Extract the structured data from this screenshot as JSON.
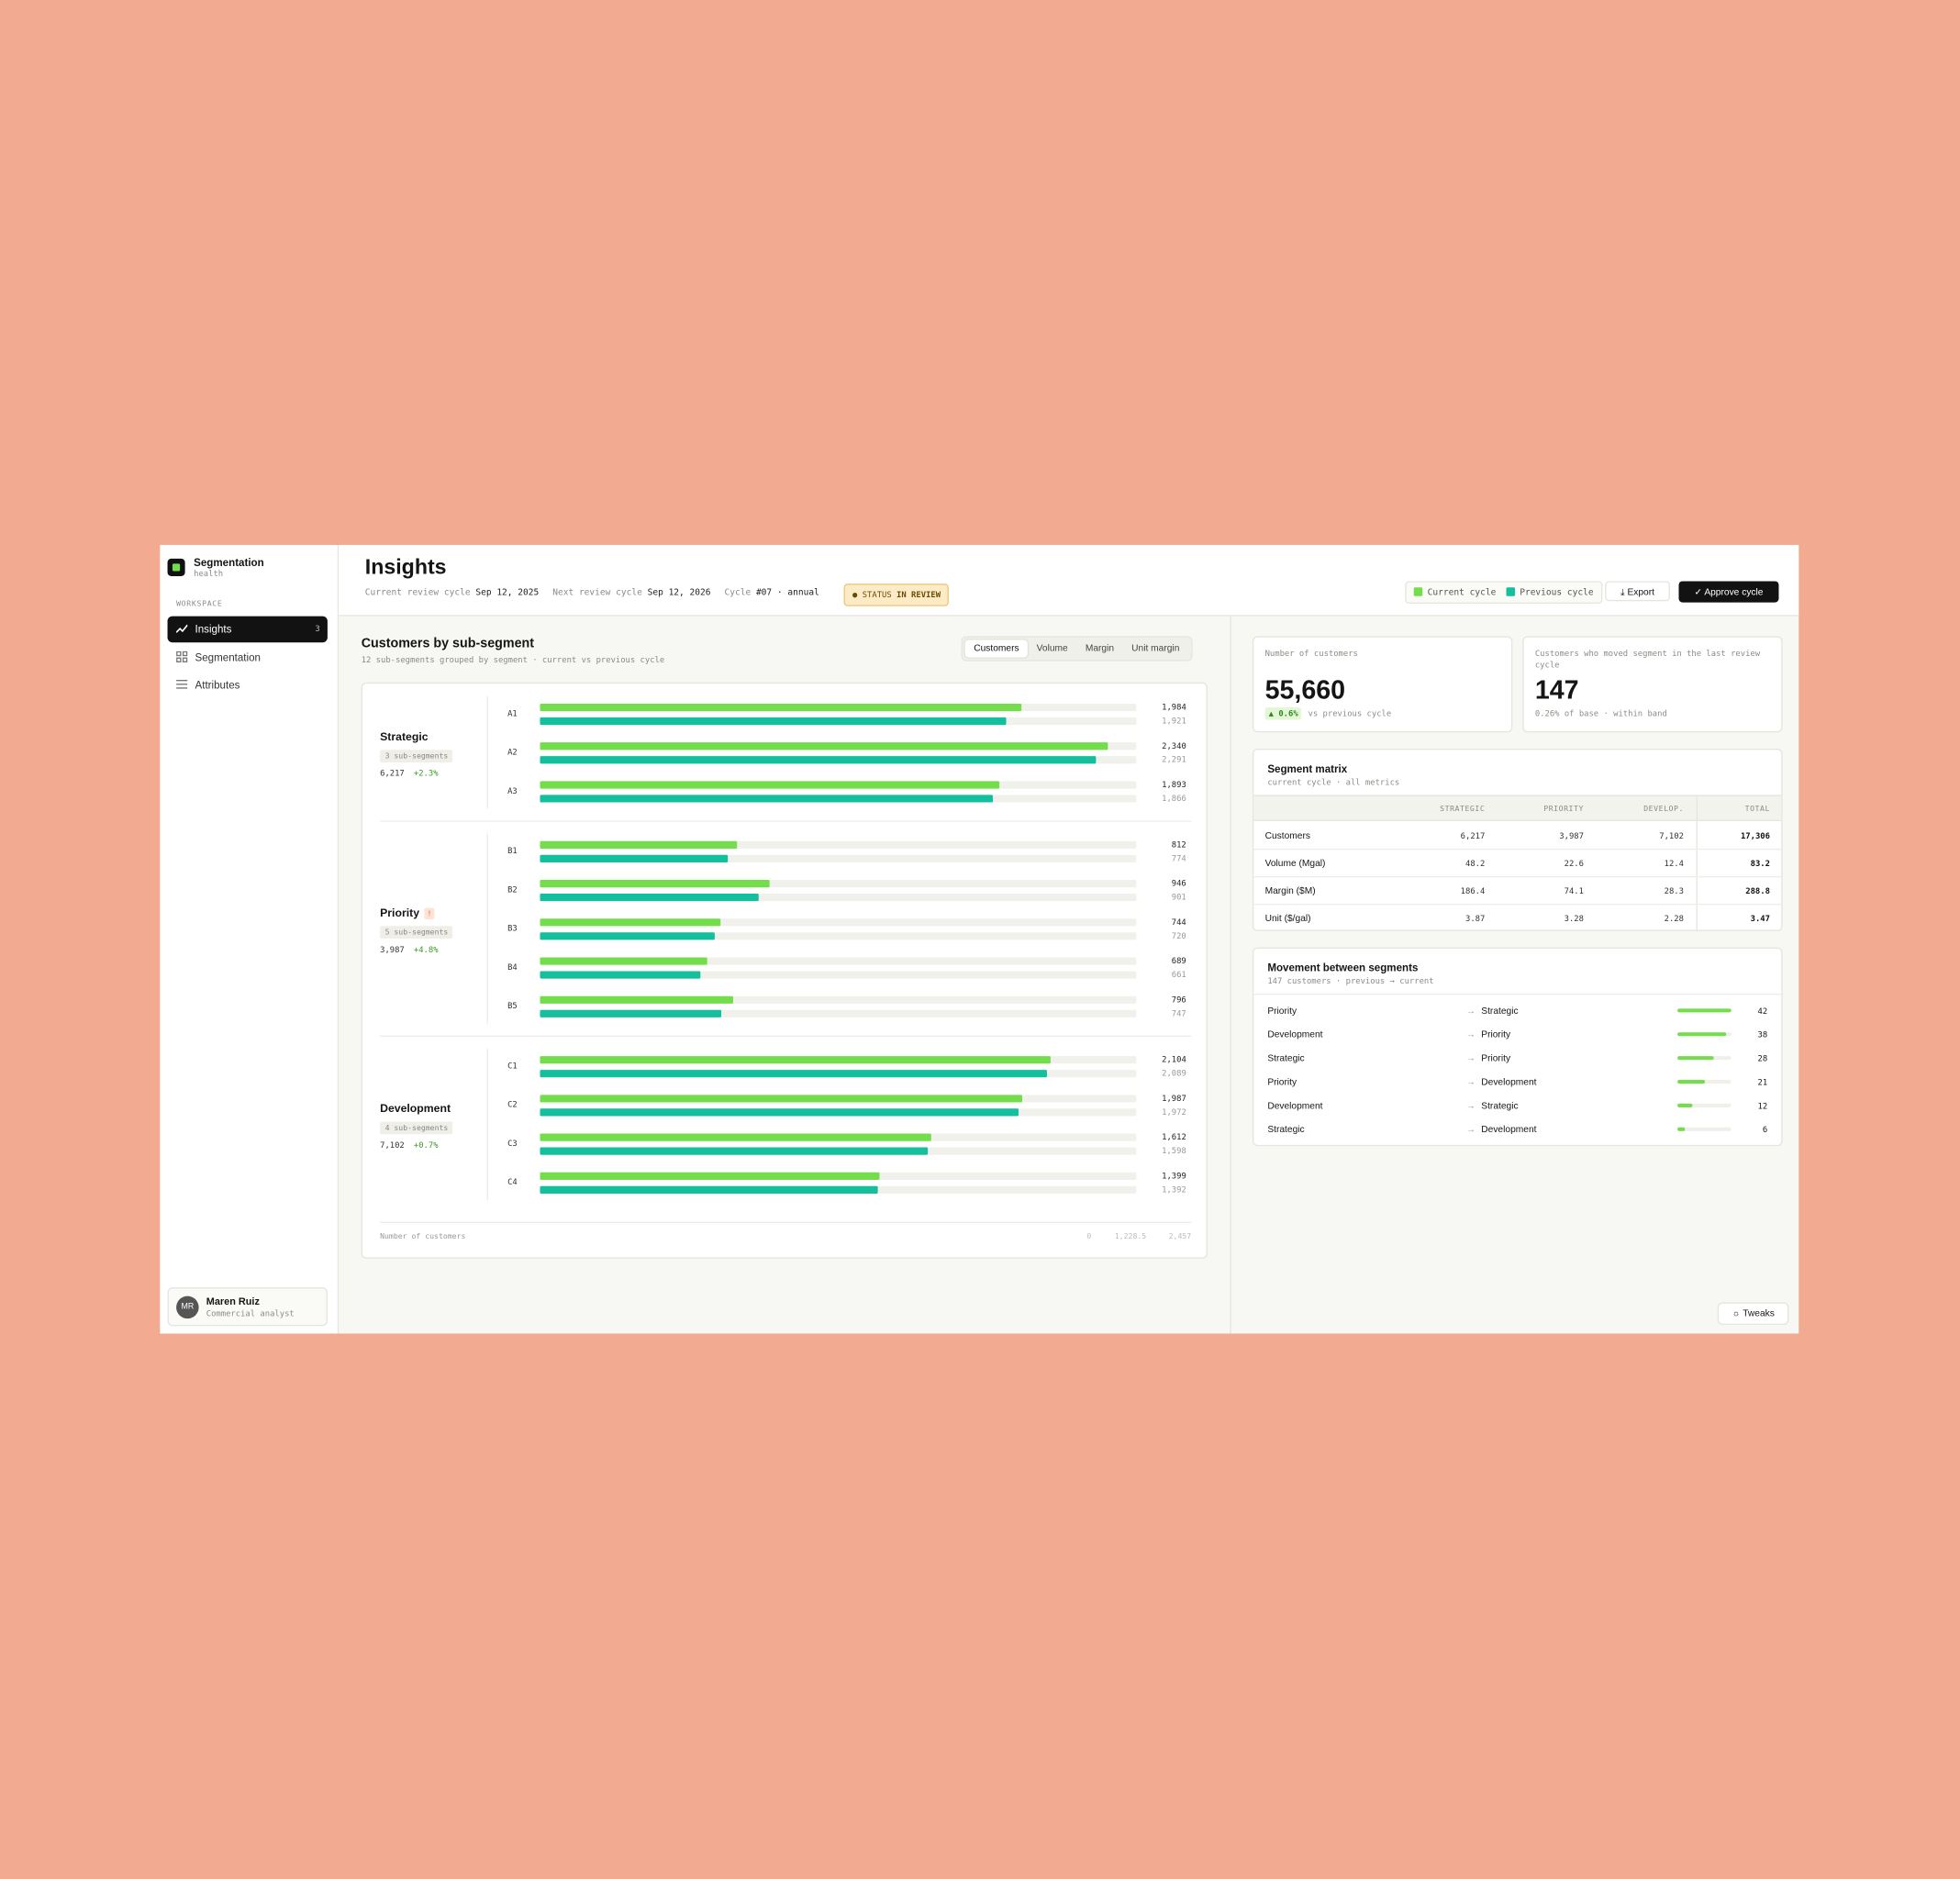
{
  "sidebar": {
    "brand": "Segmentation",
    "brand_sub": "health",
    "section": "WORKSPACE",
    "nav": [
      {
        "label": "Insights",
        "badge": "3"
      },
      {
        "label": "Segmentation"
      },
      {
        "label": "Attributes"
      }
    ],
    "user": {
      "initials": "MR",
      "name": "Maren Ruiz",
      "role": "Commercial analyst"
    }
  },
  "header": {
    "title": "Insights",
    "meta": [
      {
        "label": "Current review cycle",
        "value": "Sep 12, 2025"
      },
      {
        "label": "Next review cycle",
        "value": "Sep 12, 2026"
      },
      {
        "label": "Cycle",
        "value": "#07 · annual"
      }
    ],
    "status": {
      "label": "STATUS",
      "value": "IN REVIEW"
    },
    "buttons": [
      "Export",
      "Approve cycle"
    ]
  },
  "chart_data": {
    "type": "bar",
    "title": "Customers by sub-segment",
    "subtitle": "12 sub-segments grouped by segment · current vs previous cycle",
    "tabs": [
      "Customers",
      "Volume",
      "Margin",
      "Unit margin"
    ],
    "groups": [
      {
        "name": "Strategic",
        "sub_label": "3 sub-segments",
        "total": "6,217",
        "change": "+2.3%",
        "categories": [
          "A1",
          "A2",
          "A3"
        ]
      },
      {
        "name": "Priority",
        "flag": "!",
        "sub_label": "5 sub-segments",
        "total": "3,987",
        "change": "+4.8%",
        "categories": [
          "B1",
          "B2",
          "B3",
          "B4",
          "B5"
        ]
      },
      {
        "name": "Development",
        "sub_label": "4 sub-segments",
        "total": "7,102",
        "change": "+0.7%",
        "categories": [
          "C1",
          "C2",
          "C3",
          "C4"
        ]
      }
    ],
    "series": [
      {
        "name": "Current cycle",
        "color": "#74dd4b",
        "values": [
          1984,
          2340,
          1893,
          812,
          946,
          744,
          689,
          796,
          2104,
          1987,
          1612,
          1399
        ],
        "value_labels": [
          "1,984",
          "2,340",
          "1,893",
          "812",
          "946",
          "744",
          "689",
          "796",
          "2,104",
          "1,987",
          "1,612",
          "1,399"
        ]
      },
      {
        "name": "Previous cycle",
        "color": "#13bf9c",
        "values": [
          1921,
          2291,
          1866,
          774,
          901,
          720,
          661,
          747,
          2089,
          1972,
          1598,
          1392
        ],
        "value_labels": [
          "1,921",
          "2,291",
          "1,866",
          "774",
          "901",
          "720",
          "661",
          "747",
          "2,089",
          "1,972",
          "1,598",
          "1,392"
        ]
      }
    ],
    "x_label": "Number of customers",
    "xlim": [
      0,
      2457
    ],
    "xticks": [
      0,
      {
        "value": 1228.5,
        "label": "1,228.5"
      },
      {
        "value": 2457,
        "label": "2,457"
      }
    ]
  },
  "kpis": [
    {
      "label": "Number of customers",
      "value": "55,660",
      "delta": "0.6%",
      "note": "vs previous cycle"
    },
    {
      "label": "Customers who moved segment in the last review cycle",
      "value": "147",
      "note": "0.26% of base · within band"
    }
  ],
  "matrix": {
    "title": "Segment matrix",
    "subtitle": "current cycle · all metrics",
    "columns": [
      "STRATEGIC",
      "PRIORITY",
      "DEVELOP.",
      "TOTAL"
    ],
    "rows": [
      {
        "label": "Customers",
        "cells": [
          "6,217",
          "3,987",
          "7,102",
          "17,306"
        ]
      },
      {
        "label": "Volume (Mgal)",
        "cells": [
          "48.2",
          "22.6",
          "12.4",
          "83.2"
        ]
      },
      {
        "label": "Margin ($M)",
        "cells": [
          "186.4",
          "74.1",
          "28.3",
          "288.8"
        ]
      },
      {
        "label": "Unit ($/gal)",
        "cells": [
          "3.87",
          "3.28",
          "2.28",
          "3.47"
        ]
      }
    ]
  },
  "movement": {
    "title": "Movement between segments",
    "subtitle": "147 customers · previous → current",
    "color": "#74dd4b",
    "rows": [
      {
        "from": "Priority",
        "to": "Strategic",
        "value": 42
      },
      {
        "from": "Development",
        "to": "Priority",
        "value": 38
      },
      {
        "from": "Strategic",
        "to": "Priority",
        "value": 28
      },
      {
        "from": "Priority",
        "to": "Development",
        "value": 21
      },
      {
        "from": "Development",
        "to": "Strategic",
        "value": 12
      },
      {
        "from": "Strategic",
        "to": "Development",
        "value": 6
      }
    ]
  },
  "tweaks": "Tweaks"
}
